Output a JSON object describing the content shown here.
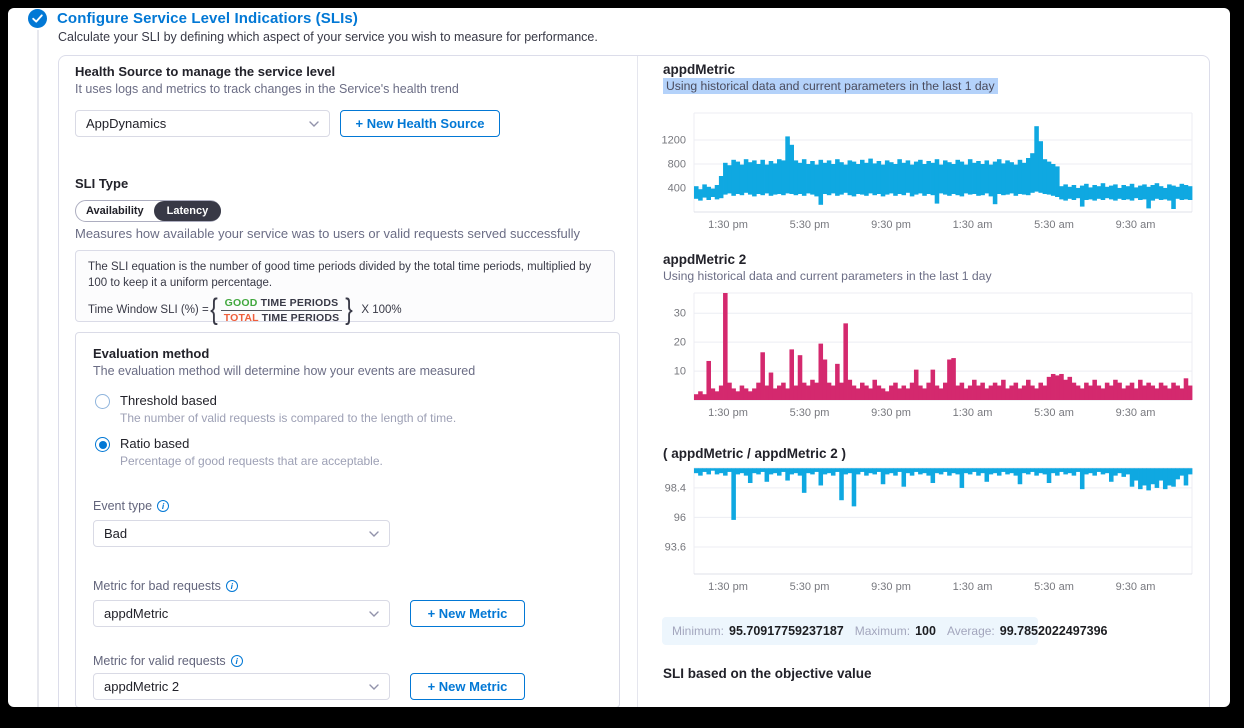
{
  "colors": {
    "primary": "#0278D5",
    "chart_blue": "#0FA8E1",
    "chart_pink": "#D4296E",
    "good_green": "#42A83F",
    "total_red": "#EE5F3C",
    "subtitle_highlight": "#B4D2FA"
  },
  "icons": {
    "info": "i",
    "completed_check": "check-circle",
    "select_chevron": "chevron-down"
  },
  "header": {
    "title": "Configure Service Level Indicatiors (SLIs)",
    "subtitle": "Calculate your SLI by defining which aspect of your service you wish to measure for performance."
  },
  "health_source": {
    "label": "Health Source to manage the service level",
    "description": "It uses logs and metrics to track changes in the Service's health trend",
    "selected": "AppDynamics",
    "new_button": "+ New Health Source"
  },
  "sli_type": {
    "label": "SLI Type",
    "options": [
      "Availability",
      "Latency"
    ],
    "selected": "Latency",
    "description": "Measures how available your service was to users or valid requests served successfully"
  },
  "equation": {
    "description": "The SLI equation is the number of good time periods divided by the total time periods, multiplied by 100 to keep it a uniform percentage.",
    "label": "Time Window SLI (%) =",
    "numerator_good": "GOOD",
    "numerator_rest": " TIME PERIODS",
    "denominator_total": "TOTAL",
    "denominator_rest": " TIME PERIODS",
    "multiplier": "X 100%"
  },
  "evaluation": {
    "label": "Evaluation method",
    "description": "The evaluation method will determine how your events are measured",
    "options": [
      {
        "label": "Threshold based",
        "description": "The number of valid requests is compared to the length of time.",
        "selected": false
      },
      {
        "label": "Ratio based",
        "description": "Percentage of good requests that are acceptable.",
        "selected": true
      }
    ]
  },
  "event_type": {
    "label": "Event type",
    "selected": "Bad"
  },
  "metric_bad": {
    "label": "Metric for bad requests",
    "selected": "appdMetric",
    "new_button": "+ New Metric"
  },
  "metric_valid": {
    "label": "Metric for valid requests",
    "selected": "appdMetric 2",
    "new_button": "+ New Metric"
  },
  "stats": {
    "minimum_label": "Minimum:",
    "minimum": "95.70917759237187",
    "maximum_label": "Maximum:",
    "maximum": "100",
    "average_label": "Average:",
    "average": "99.7852022497396"
  },
  "sli_objective_heading": "SLI based on the objective value",
  "chart_data": [
    {
      "type": "area",
      "title": "appdMetric",
      "subtitle": "Using historical data and current parameters in the last 1 day",
      "subtitle_highlighted": true,
      "color": "#0FA8E1",
      "render": "band",
      "x_ticks": [
        "1:30 pm",
        "5:30 pm",
        "9:30 pm",
        "1:30 am",
        "5:30 am",
        "9:30 am"
      ],
      "y_ticks": [
        400,
        800,
        1200
      ],
      "ylim": [
        0,
        1650
      ],
      "high": [
        430,
        380,
        460,
        420,
        390,
        450,
        600,
        820,
        780,
        870,
        840,
        790,
        880,
        830,
        860,
        800,
        870,
        790,
        850,
        810,
        880,
        860,
        1260,
        1120,
        860,
        820,
        880,
        800,
        850,
        790,
        870,
        820,
        860,
        800,
        880,
        830,
        790,
        860,
        840,
        800,
        870,
        820,
        890,
        810,
        850,
        790,
        860,
        830,
        800,
        880,
        820,
        860,
        790,
        840,
        870,
        800,
        850,
        820,
        880,
        790,
        860,
        830,
        800,
        870,
        840,
        790,
        880,
        820,
        850,
        800,
        860,
        790,
        840,
        880,
        810,
        860,
        830,
        790,
        870,
        820,
        900,
        980,
        1430,
        1180,
        880,
        840,
        800,
        760,
        430,
        460,
        420,
        450,
        400,
        440,
        470,
        410,
        450,
        430,
        480,
        420,
        440,
        460,
        400,
        450,
        430,
        470,
        410,
        440,
        460,
        420,
        450,
        480,
        430,
        400,
        460,
        440,
        420,
        470,
        450,
        430
      ],
      "low": [
        220,
        190,
        240,
        200,
        250,
        210,
        230,
        290,
        310,
        270,
        300,
        280,
        320,
        290,
        260,
        300,
        280,
        310,
        270,
        290,
        300,
        280,
        310,
        300,
        280,
        300,
        270,
        310,
        290,
        260,
        120,
        300,
        280,
        310,
        270,
        290,
        320,
        280,
        260,
        300,
        290,
        270,
        310,
        280,
        300,
        260,
        290,
        310,
        270,
        300,
        280,
        320,
        260,
        290,
        310,
        270,
        300,
        280,
        140,
        310,
        290,
        270,
        300,
        280,
        260,
        310,
        290,
        300,
        270,
        280,
        310,
        260,
        130,
        300,
        280,
        290,
        310,
        270,
        300,
        290,
        280,
        320,
        340,
        320,
        300,
        290,
        270,
        250,
        210,
        190,
        220,
        200,
        230,
        90,
        200,
        210,
        190,
        220,
        200,
        230,
        210,
        190,
        220,
        200,
        210,
        190,
        230,
        200,
        210,
        60,
        190,
        220,
        200,
        210,
        190,
        50,
        220,
        200,
        210,
        200
      ]
    },
    {
      "type": "area",
      "title": "appdMetric 2",
      "subtitle": "Using historical data and current parameters in the last 1 day",
      "subtitle_highlighted": false,
      "color": "#D4296E",
      "render": "bars",
      "x_ticks": [
        "1:30 pm",
        "5:30 pm",
        "9:30 pm",
        "1:30 am",
        "5:30 am",
        "9:30 am"
      ],
      "y_ticks": [
        10,
        20,
        30
      ],
      "ylim": [
        0,
        37
      ],
      "values": [
        2,
        3,
        2,
        13.5,
        4,
        3,
        5,
        37,
        6,
        4,
        3,
        5,
        4,
        3,
        4,
        6,
        16.5,
        5,
        9.5,
        4,
        5,
        6,
        4,
        17.5,
        5,
        15.5,
        6,
        5,
        7,
        6,
        19.5,
        14,
        6,
        5,
        12.5,
        6,
        26.5,
        7,
        5,
        4,
        6,
        5,
        4,
        7,
        5,
        4,
        3,
        5,
        6,
        4,
        5,
        4,
        6,
        10.5,
        5,
        4,
        6,
        10.5,
        5,
        4,
        6,
        14,
        14.5,
        5,
        6,
        4,
        5,
        7,
        5,
        6,
        4,
        5,
        6,
        5,
        7,
        4,
        5,
        6,
        4,
        5,
        7,
        5,
        4,
        6,
        5,
        8,
        9,
        8.5,
        9,
        7,
        8,
        6,
        5,
        4,
        6,
        5,
        7,
        5,
        4,
        6,
        5,
        7,
        6,
        4,
        5,
        6,
        4,
        7,
        5,
        6,
        5,
        4,
        6,
        5,
        4,
        6,
        5,
        4,
        7.5,
        5
      ]
    },
    {
      "type": "area",
      "title": "( appdMetric / appdMetric 2 )",
      "color": "#0FA8E1",
      "render": "band-top",
      "band_top": 100.0,
      "x_ticks": [
        "1:30 pm",
        "5:30 pm",
        "9:30 pm",
        "1:30 am",
        "5:30 am",
        "9:30 am"
      ],
      "y_ticks": [
        98.4,
        96,
        93.6
      ],
      "ylim": [
        91.4,
        100.02
      ],
      "values": [
        99.6,
        99.4,
        99.7,
        99.5,
        99.8,
        99.5,
        99.6,
        99.4,
        99.7,
        95.8,
        99.5,
        99.6,
        99.4,
        98.8,
        99.6,
        99.5,
        99.7,
        98.9,
        99.5,
        99.6,
        99.4,
        99.7,
        99.0,
        99.5,
        99.6,
        99.4,
        98.0,
        99.6,
        99.5,
        99.7,
        98.6,
        99.5,
        99.6,
        99.4,
        99.7,
        97.4,
        99.5,
        99.6,
        96.9,
        99.5,
        99.7,
        99.4,
        99.6,
        99.5,
        99.7,
        98.7,
        99.5,
        99.6,
        99.4,
        99.7,
        98.5,
        99.6,
        99.4,
        99.7,
        99.5,
        99.6,
        99.4,
        98.8,
        99.6,
        99.5,
        99.7,
        99.4,
        99.6,
        99.5,
        98.4,
        99.6,
        99.5,
        99.7,
        99.4,
        99.6,
        98.9,
        99.5,
        99.6,
        99.4,
        99.7,
        99.5,
        99.6,
        99.4,
        98.7,
        99.6,
        99.5,
        99.7,
        99.4,
        99.6,
        99.5,
        98.8,
        99.6,
        99.4,
        99.7,
        99.5,
        99.6,
        99.4,
        99.7,
        98.3,
        99.5,
        99.6,
        99.4,
        99.7,
        99.5,
        99.6,
        98.9,
        99.4,
        99.6,
        99.3,
        99.5,
        98.5,
        99.0,
        98.3,
        98.6,
        98.2,
        98.7,
        98.4,
        99.0,
        98.3,
        98.6,
        98.5,
        99.1,
        99.4,
        98.6,
        99.5
      ]
    }
  ]
}
